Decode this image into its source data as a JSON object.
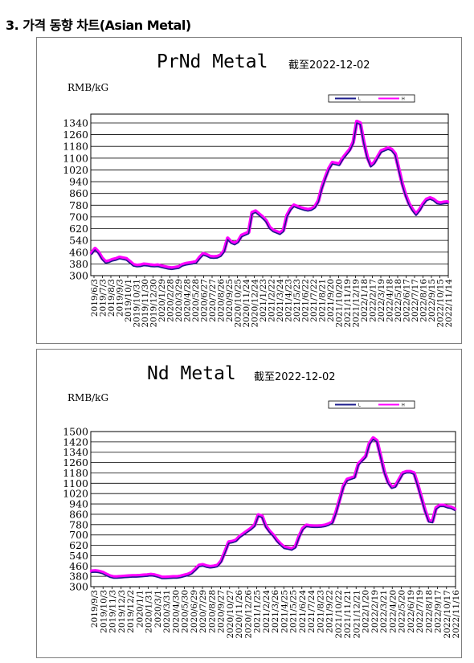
{
  "page": {
    "section_title": "3. 가격 동향 차트(Asian Metal)"
  },
  "colors": {
    "series_low": "#1c1c8c",
    "series_high": "#ff00ff",
    "grid": "#000000"
  },
  "chart_data": [
    {
      "type": "line",
      "title": "PrNd Metal",
      "date_note": "截至2022-12-02",
      "ylabel": "RMB/kG",
      "ylim": [
        300,
        1400
      ],
      "yticks": [
        300,
        380,
        460,
        540,
        620,
        700,
        780,
        860,
        940,
        1020,
        1100,
        1180,
        1260,
        1340
      ],
      "grid": true,
      "legend_position": "top-right",
      "x_ticks": [
        "2019/6/3",
        "2019/7/3",
        "2019/8/3",
        "2019/9/3",
        "2019/10/1",
        "2019/10/31",
        "2019/11/30",
        "2019/12/30",
        "2020/1/29",
        "2020/2/28",
        "2020/3/29",
        "2020/4/28",
        "2020/5/28",
        "2020/6/27",
        "2020/7/27",
        "2020/8/26",
        "2020/9/25",
        "2020/10/25",
        "2020/11/24",
        "2020/12/24",
        "2021/1/23",
        "2021/2/22",
        "2021/3/24",
        "2021/4/23",
        "2021/5/23",
        "2021/6/22",
        "2021/7/22",
        "2021/8/21",
        "2021/9/20",
        "2021/10/20",
        "2021/11/19",
        "2021/12/19",
        "2022/1/18",
        "2022/2/17",
        "2022/3/19",
        "2022/4/18",
        "2022/5/18",
        "2022/6/17",
        "2022/7/17",
        "2022/8/16",
        "2022/9/15",
        "2022/10/15",
        "2022/11/14"
      ],
      "series": [
        {
          "name": "L",
          "values": [
            445,
            475,
            450,
            410,
            385,
            390,
            400,
            405,
            415,
            410,
            405,
            385,
            365,
            360,
            362,
            368,
            366,
            362,
            360,
            362,
            356,
            350,
            345,
            342,
            346,
            350,
            365,
            372,
            376,
            380,
            385,
            415,
            440,
            432,
            420,
            418,
            420,
            430,
            460,
            545,
            520,
            510,
            525,
            565,
            575,
            585,
            720,
            730,
            710,
            690,
            665,
            620,
            600,
            590,
            580,
            600,
            700,
            745,
            770,
            760,
            752,
            745,
            740,
            745,
            760,
            800,
            890,
            960,
            1020,
            1060,
            1055,
            1050,
            1090,
            1120,
            1150,
            1200,
            1340,
            1330,
            1200,
            1100,
            1040,
            1060,
            1100,
            1140,
            1150,
            1160,
            1150,
            1120,
            1020,
            920,
            840,
            780,
            740,
            710,
            740,
            780,
            810,
            820,
            810,
            790,
            785,
            790,
            792
          ]
        },
        {
          "name": "H",
          "values": [
            455,
            485,
            460,
            420,
            395,
            400,
            410,
            415,
            425,
            420,
            415,
            395,
            375,
            370,
            372,
            378,
            376,
            372,
            370,
            372,
            366,
            360,
            355,
            352,
            356,
            360,
            375,
            382,
            386,
            390,
            395,
            425,
            450,
            442,
            430,
            428,
            430,
            440,
            470,
            555,
            530,
            520,
            535,
            575,
            585,
            595,
            730,
            740,
            720,
            700,
            675,
            630,
            610,
            600,
            590,
            610,
            710,
            755,
            780,
            770,
            762,
            755,
            750,
            755,
            770,
            810,
            900,
            970,
            1030,
            1070,
            1065,
            1060,
            1100,
            1130,
            1160,
            1210,
            1350,
            1340,
            1210,
            1110,
            1050,
            1070,
            1110,
            1150,
            1160,
            1170,
            1160,
            1130,
            1030,
            930,
            850,
            790,
            750,
            720,
            750,
            790,
            820,
            830,
            820,
            800,
            795,
            800,
            802
          ]
        }
      ]
    },
    {
      "type": "line",
      "title": "Nd Metal",
      "date_note": "截至2022-12-02",
      "ylabel": "RMB/kG",
      "ylim": [
        300,
        1500
      ],
      "yticks": [
        300,
        380,
        460,
        540,
        620,
        700,
        780,
        860,
        940,
        1020,
        1100,
        1180,
        1260,
        1340,
        1420,
        1500
      ],
      "grid": true,
      "legend_position": "top-right",
      "x_ticks": [
        "2019/9/3",
        "2019/10/3",
        "2019/11/3",
        "2019/12/3",
        "2019/12/2",
        "2020/1/1",
        "2020/1/31",
        "2020/3/1",
        "2020/3/31",
        "2020/4/30",
        "2020/5/30",
        "2020/6/29",
        "2020/7/29",
        "2020/8/28",
        "2020/9/27",
        "2020/10/27",
        "2020/11/26",
        "2020/12/26",
        "2021/1/25",
        "2021/2/24",
        "2021/3/26",
        "2021/4/25",
        "2021/5/25",
        "2021/6/24",
        "2021/7/24",
        "2021/8/23",
        "2021/9/22",
        "2021/10/22",
        "2021/11/21",
        "2021/12/21",
        "2022/1/20",
        "2022/2/19",
        "2022/3/21",
        "2022/4/20",
        "2022/5/20",
        "2022/6/19",
        "2022/7/19",
        "2022/8/18",
        "2022/9/17",
        "2022/10/17",
        "2022/11/16"
      ],
      "series": [
        {
          "name": "L",
          "values": [
            410,
            412,
            408,
            400,
            385,
            372,
            365,
            366,
            368,
            370,
            372,
            374,
            374,
            376,
            378,
            380,
            384,
            380,
            372,
            362,
            362,
            364,
            366,
            366,
            370,
            378,
            385,
            398,
            425,
            455,
            460,
            450,
            445,
            448,
            455,
            490,
            560,
            635,
            640,
            650,
            680,
            700,
            720,
            740,
            765,
            845,
            835,
            760,
            720,
            690,
            650,
            620,
            595,
            590,
            582,
            600,
            680,
            740,
            765,
            760,
            758,
            758,
            760,
            765,
            775,
            790,
            870,
            970,
            1070,
            1120,
            1130,
            1140,
            1240,
            1270,
            1300,
            1400,
            1440,
            1420,
            1300,
            1180,
            1100,
            1060,
            1070,
            1120,
            1170,
            1180,
            1180,
            1170,
            1080,
            980,
            880,
            800,
            795,
            900,
            920,
            920,
            910,
            905,
            890
          ]
        },
        {
          "name": "H",
          "values": [
            420,
            422,
            418,
            410,
            395,
            382,
            375,
            376,
            378,
            380,
            382,
            384,
            384,
            386,
            388,
            390,
            394,
            390,
            382,
            372,
            372,
            374,
            376,
            376,
            380,
            388,
            395,
            408,
            435,
            465,
            470,
            460,
            455,
            458,
            465,
            500,
            570,
            645,
            650,
            660,
            690,
            710,
            730,
            750,
            775,
            855,
            845,
            770,
            730,
            700,
            660,
            630,
            605,
            600,
            592,
            610,
            690,
            750,
            775,
            770,
            768,
            768,
            770,
            775,
            785,
            800,
            880,
            980,
            1080,
            1130,
            1140,
            1150,
            1250,
            1280,
            1310,
            1410,
            1450,
            1430,
            1310,
            1190,
            1110,
            1070,
            1080,
            1130,
            1180,
            1190,
            1190,
            1180,
            1090,
            990,
            890,
            810,
            805,
            910,
            930,
            930,
            920,
            915,
            900
          ]
        }
      ]
    }
  ]
}
